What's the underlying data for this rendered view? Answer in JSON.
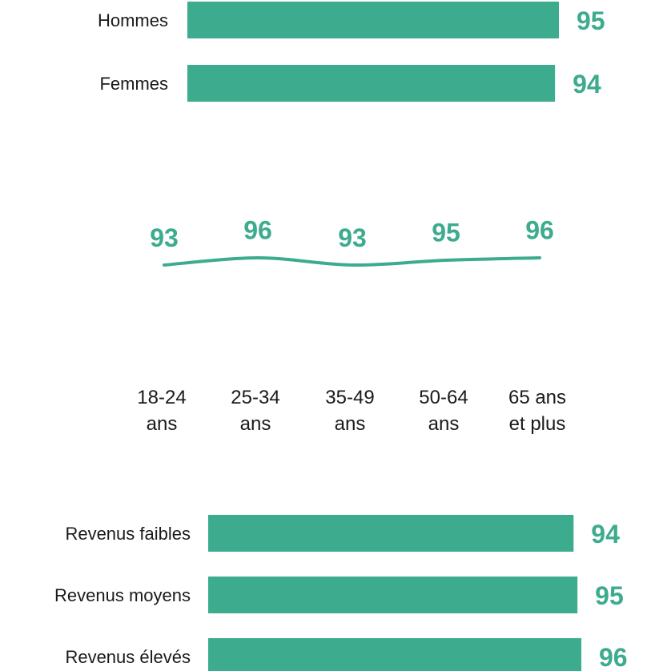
{
  "colors": {
    "accent": "#3dab8e",
    "text": "#1a1a1a",
    "background": "#ffffff"
  },
  "chart_data": [
    {
      "type": "bar",
      "orientation": "horizontal",
      "categories": [
        "Hommes",
        "Femmes"
      ],
      "values": [
        95,
        94
      ],
      "xlim": [
        0,
        95
      ],
      "data_labels": [
        "95",
        "94"
      ]
    },
    {
      "type": "line",
      "categories": [
        "18-24 ans",
        "25-34 ans",
        "35-49 ans",
        "50-64 ans",
        "65 ans et plus"
      ],
      "category_lines": [
        [
          "18-24",
          "ans"
        ],
        [
          "25-34",
          "ans"
        ],
        [
          "35-49",
          "ans"
        ],
        [
          "50-64",
          "ans"
        ],
        [
          "65 ans",
          "et plus"
        ]
      ],
      "values": [
        93,
        96,
        93,
        95,
        96
      ],
      "data_labels": [
        "93",
        "96",
        "93",
        "95",
        "96"
      ],
      "ylim": [
        92,
        97
      ]
    },
    {
      "type": "bar",
      "orientation": "horizontal",
      "categories": [
        "Revenus faibles",
        "Revenus moyens",
        "Revenus élevés"
      ],
      "values": [
        94,
        95,
        96
      ],
      "xlim": [
        0,
        96
      ],
      "data_labels": [
        "94",
        "95",
        "96"
      ]
    }
  ]
}
